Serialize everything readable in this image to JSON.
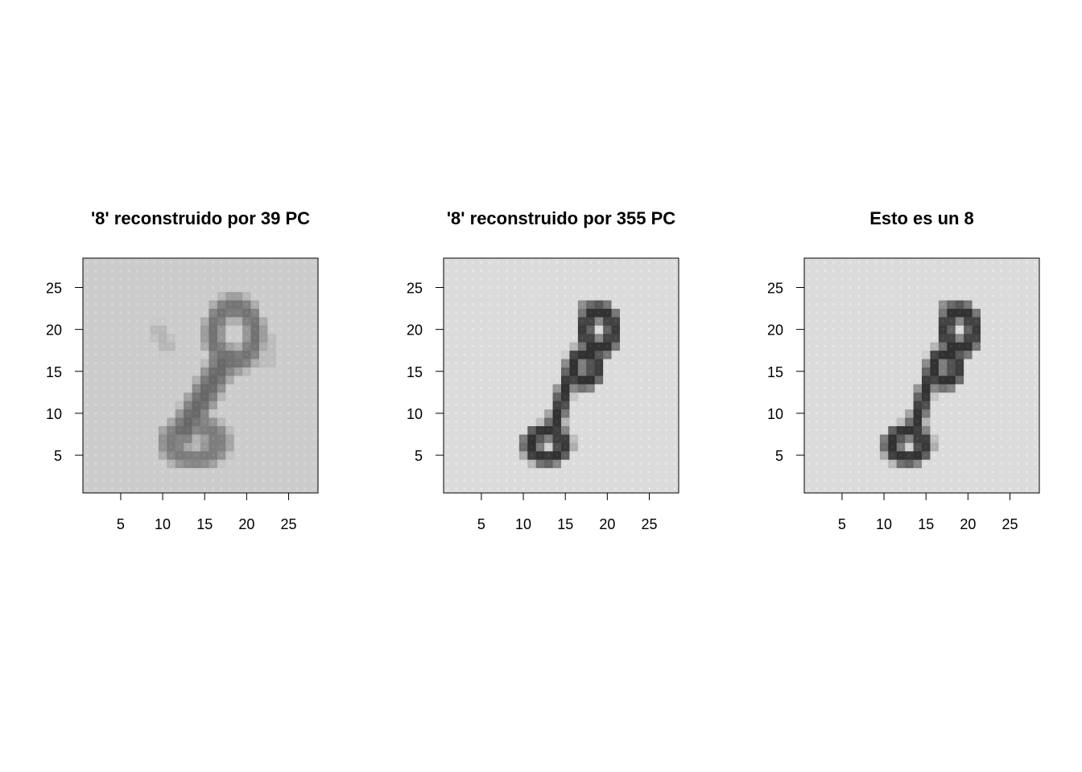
{
  "chart_data": [
    {
      "type": "heatmap",
      "title": "'8' reconstruido por 39 PC",
      "xlabel": "",
      "ylabel": "",
      "xlim": [
        0.5,
        28.5
      ],
      "ylim": [
        0.5,
        28.5
      ],
      "x_ticks": [
        5,
        10,
        15,
        20,
        25
      ],
      "y_ticks": [
        5,
        10,
        15,
        20,
        25
      ],
      "grid": 28,
      "background_gray": 0.8,
      "stroke_min_gray": 0.16,
      "colormap": "grayscale",
      "strokes": [
        {
          "cx": 18.5,
          "cy": 19.5,
          "rx": 2.5,
          "ry": 3.2,
          "w": 1.5,
          "a": 0.55
        },
        {
          "cx": 13.8,
          "cy": 6.6,
          "rx": 2.7,
          "ry": 2.0,
          "w": 1.6,
          "a": 0.5
        },
        {
          "x1": 17.5,
          "y1": 16.5,
          "x2": 12.5,
          "y2": 8.0,
          "w": 2.1,
          "a": 0.62
        },
        {
          "x1": 16.5,
          "y1": 22.0,
          "x2": 20.5,
          "y2": 22.0,
          "w": 1.2,
          "a": 0.4
        },
        {
          "x1": 9.5,
          "y1": 20.0,
          "x2": 10.5,
          "y2": 18.0,
          "w": 1.2,
          "a": 0.15
        },
        {
          "x1": 22.5,
          "y1": 19.0,
          "x2": 22.5,
          "y2": 16.0,
          "w": 1.0,
          "a": 0.12
        }
      ]
    },
    {
      "type": "heatmap",
      "title": "'8' reconstruido por 355 PC",
      "xlabel": "",
      "ylabel": "",
      "xlim": [
        0.5,
        28.5
      ],
      "ylim": [
        0.5,
        28.5
      ],
      "x_ticks": [
        5,
        10,
        15,
        20,
        25
      ],
      "y_ticks": [
        5,
        10,
        15,
        20,
        25
      ],
      "grid": 28,
      "background_gray": 0.86,
      "stroke_min_gray": 0.19,
      "colormap": "grayscale",
      "strokes": [
        {
          "cx": 19.0,
          "cy": 20.0,
          "rx": 1.7,
          "ry": 2.2,
          "w": 1.3,
          "a": 1.0
        },
        {
          "cx": 17.3,
          "cy": 15.5,
          "rx": 1.4,
          "ry": 1.6,
          "w": 1.3,
          "a": 1.0
        },
        {
          "cx": 12.8,
          "cy": 6.3,
          "rx": 1.9,
          "ry": 1.6,
          "w": 1.3,
          "a": 1.0
        },
        {
          "x1": 15.5,
          "y1": 14.5,
          "x2": 13.5,
          "y2": 8.0,
          "w": 1.3,
          "a": 1.0
        },
        {
          "x1": 17.5,
          "y1": 22.5,
          "x2": 19.0,
          "y2": 22.5,
          "w": 1.0,
          "a": 0.9
        }
      ]
    },
    {
      "type": "heatmap",
      "title": "Esto es un 8",
      "xlabel": "",
      "ylabel": "",
      "xlim": [
        0.5,
        28.5
      ],
      "ylim": [
        0.5,
        28.5
      ],
      "x_ticks": [
        5,
        10,
        15,
        20,
        25
      ],
      "y_ticks": [
        5,
        10,
        15,
        20,
        25
      ],
      "grid": 28,
      "background_gray": 0.86,
      "stroke_min_gray": 0.19,
      "colormap": "grayscale",
      "strokes": [
        {
          "cx": 19.0,
          "cy": 20.0,
          "rx": 1.7,
          "ry": 2.2,
          "w": 1.3,
          "a": 1.0
        },
        {
          "cx": 17.3,
          "cy": 15.5,
          "rx": 1.4,
          "ry": 1.6,
          "w": 1.3,
          "a": 1.0
        },
        {
          "cx": 12.8,
          "cy": 6.3,
          "rx": 1.9,
          "ry": 1.6,
          "w": 1.3,
          "a": 1.0
        },
        {
          "x1": 15.5,
          "y1": 14.5,
          "x2": 13.5,
          "y2": 8.0,
          "w": 1.3,
          "a": 1.0
        },
        {
          "x1": 17.5,
          "y1": 22.5,
          "x2": 19.0,
          "y2": 22.5,
          "w": 1.0,
          "a": 0.9
        }
      ]
    }
  ]
}
